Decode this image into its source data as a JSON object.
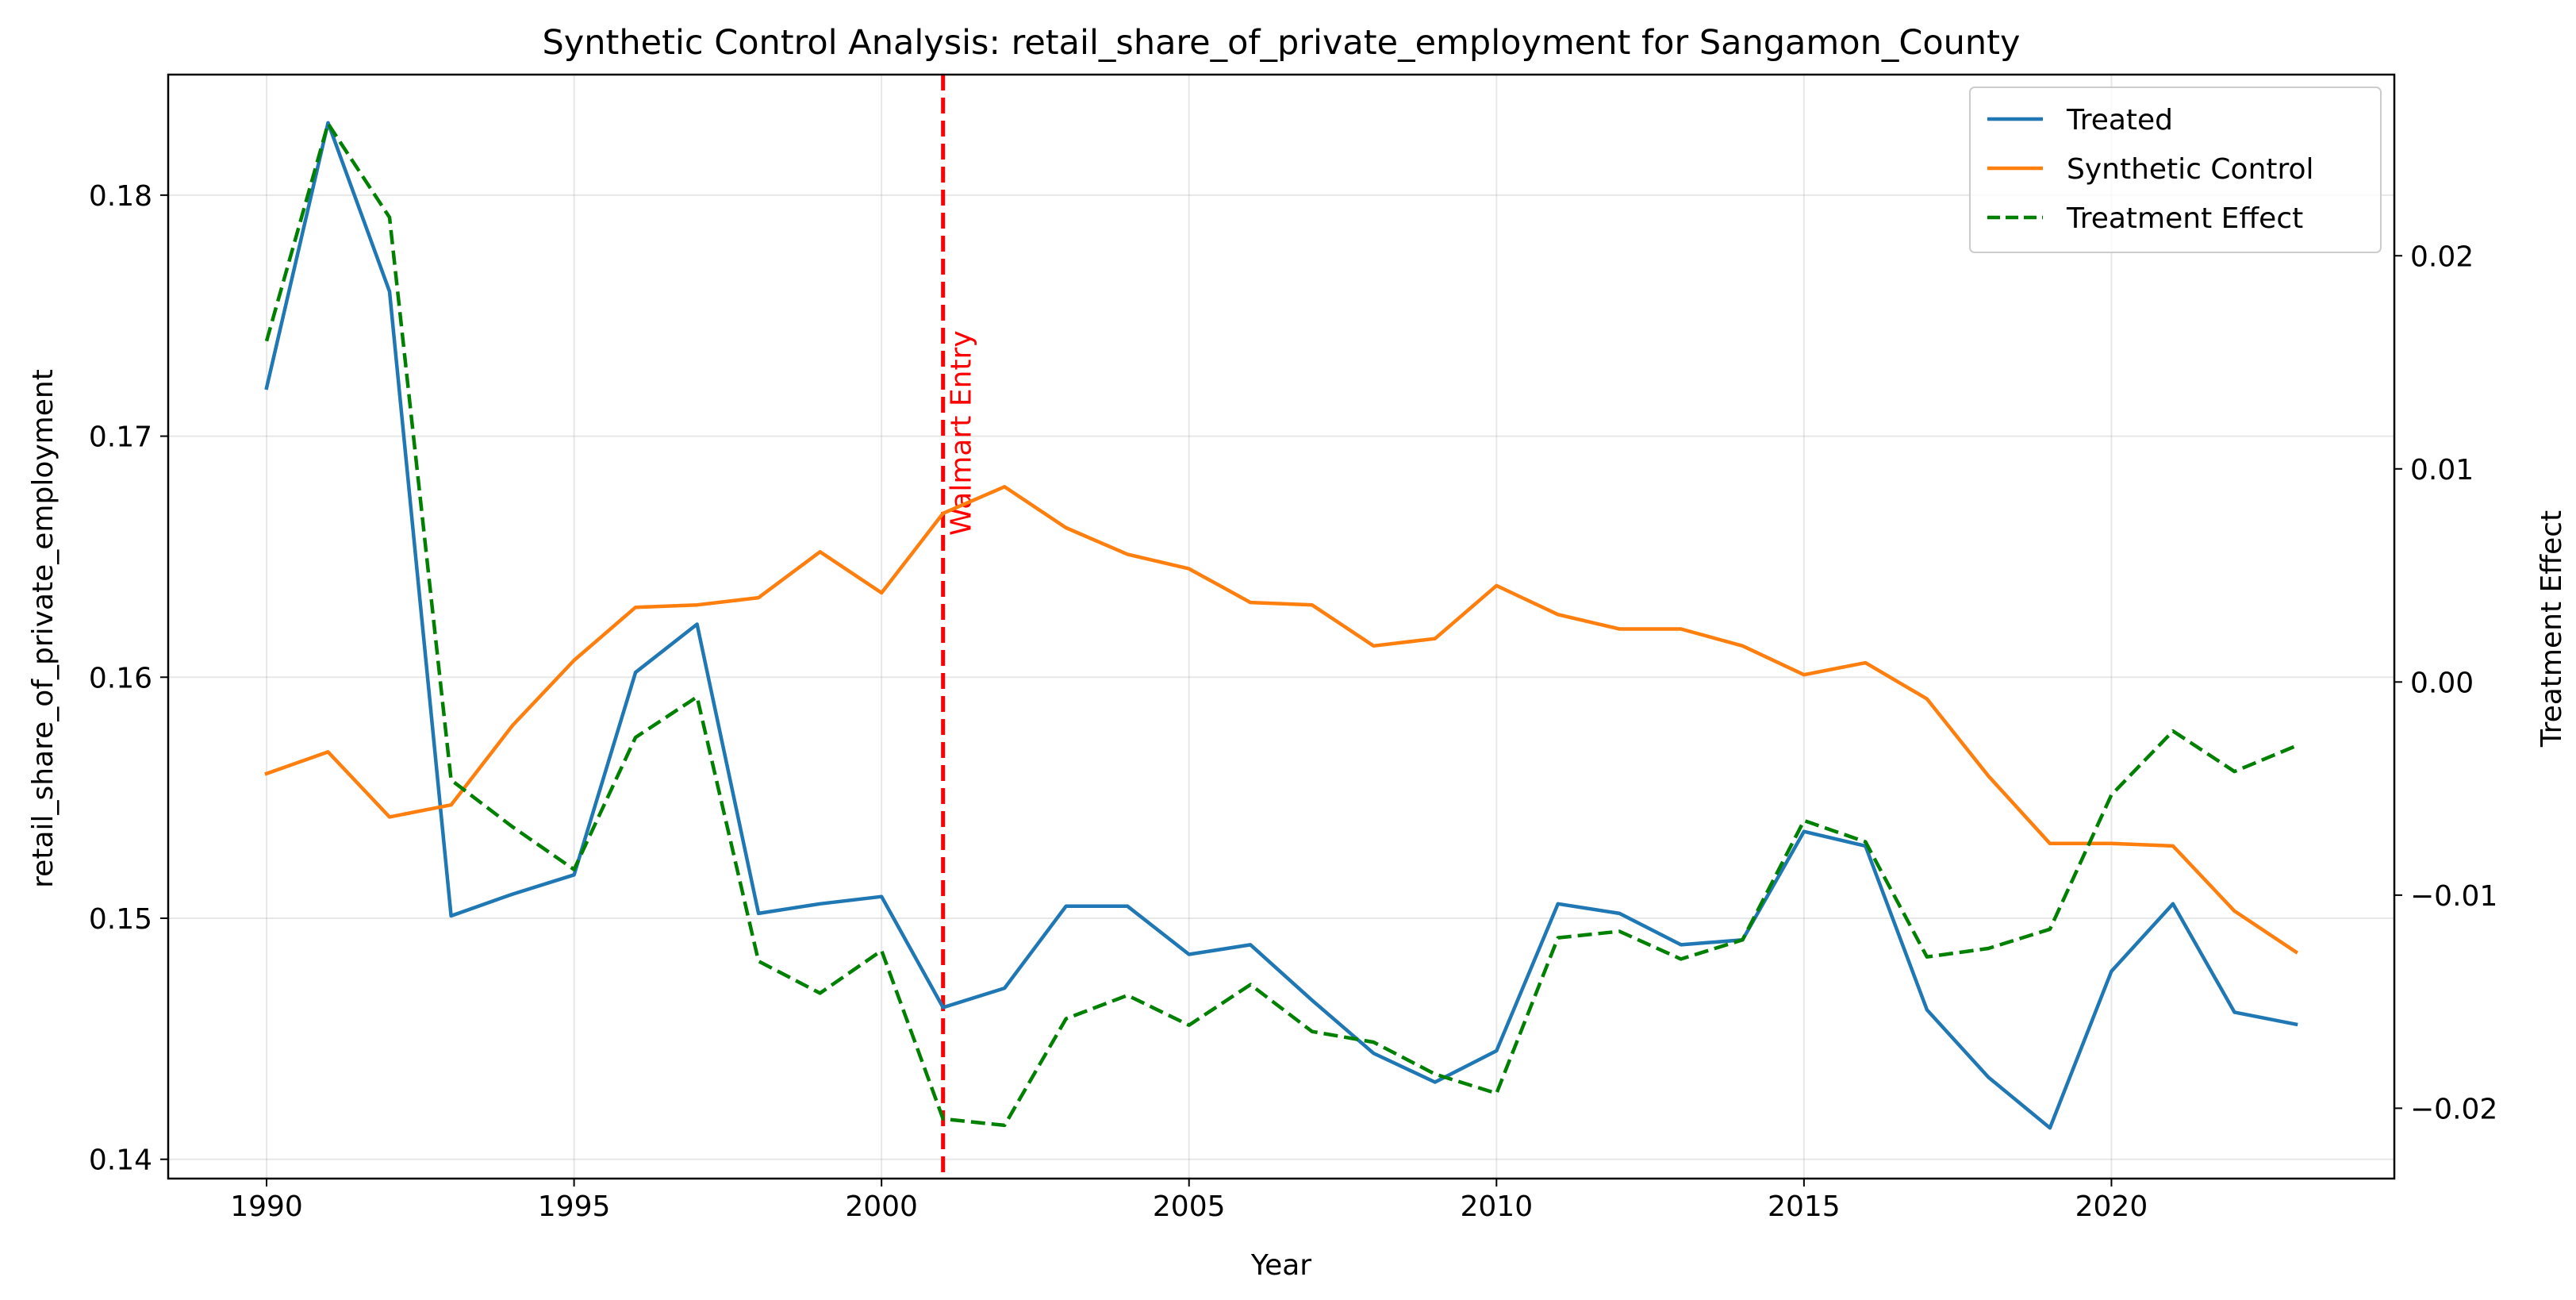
{
  "chart_data": {
    "type": "line",
    "title": "Synthetic Control Analysis: retail_share_of_private_employment for Sangamon_County",
    "xlabel": "Year",
    "ylabel": "retail_share_of_private_employment",
    "y2label": "Treatment Effect",
    "xlim": [
      1988.4,
      2024.6
    ],
    "ylim": [
      0.1392,
      0.185
    ],
    "y2lim": [
      -0.0233,
      0.0285
    ],
    "x_ticks": [
      "1990",
      "1995",
      "2000",
      "2005",
      "2010",
      "2015",
      "2020"
    ],
    "y_ticks": [
      "0.14",
      "0.15",
      "0.16",
      "0.17",
      "0.18"
    ],
    "y2_ticks": [
      "−0.02",
      "−0.01",
      "0.00",
      "0.01",
      "0.02"
    ],
    "grid": true,
    "legend_position": "top-right",
    "x": [
      1990,
      1991,
      1992,
      1993,
      1994,
      1995,
      1996,
      1997,
      1998,
      1999,
      2000,
      2001,
      2002,
      2003,
      2004,
      2005,
      2006,
      2007,
      2008,
      2009,
      2010,
      2011,
      2012,
      2013,
      2014,
      2015,
      2016,
      2017,
      2018,
      2019,
      2020,
      2021,
      2022,
      2023
    ],
    "series": [
      {
        "name": "Treated",
        "color": "#1f77b4",
        "style": "solid",
        "axis": "left",
        "values": [
          0.172,
          0.183,
          0.176,
          0.1501,
          0.151,
          0.1518,
          0.1602,
          0.1622,
          0.1502,
          0.1506,
          0.1509,
          0.1463,
          0.1471,
          0.1505,
          0.1505,
          0.1485,
          0.1489,
          0.1466,
          0.1444,
          0.1432,
          0.1445,
          0.1506,
          0.1502,
          0.1489,
          0.1491,
          0.1536,
          0.153,
          0.1462,
          0.1434,
          0.1413,
          0.1478,
          0.1506,
          0.1461,
          0.1456
        ]
      },
      {
        "name": "Synthetic Control",
        "color": "#ff7f0e",
        "style": "solid",
        "axis": "left",
        "values": [
          0.156,
          0.1569,
          0.1542,
          0.1547,
          0.158,
          0.1607,
          0.1629,
          0.163,
          0.1633,
          0.1652,
          0.1635,
          0.1668,
          0.1679,
          0.1662,
          0.1651,
          0.1645,
          0.1631,
          0.163,
          0.1613,
          0.1616,
          0.1638,
          0.1626,
          0.162,
          0.162,
          0.1613,
          0.1601,
          0.1606,
          0.1591,
          0.1559,
          0.1531,
          0.1531,
          0.153,
          0.1503,
          0.1486
        ]
      },
      {
        "name": "Treatment Effect",
        "color": "#008000",
        "style": "dashed",
        "axis": "right",
        "values": [
          0.016,
          0.0262,
          0.0218,
          -0.0046,
          -0.0068,
          -0.0088,
          -0.0026,
          -0.0007,
          -0.0131,
          -0.0146,
          -0.0126,
          -0.0205,
          -0.0208,
          -0.0158,
          -0.0147,
          -0.0161,
          -0.0142,
          -0.0164,
          -0.0169,
          -0.0184,
          -0.0193,
          -0.012,
          -0.0117,
          -0.013,
          -0.0121,
          -0.0065,
          -0.0075,
          -0.0129,
          -0.0125,
          -0.0116,
          -0.0053,
          -0.0023,
          -0.0042,
          -0.003
        ]
      }
    ],
    "annotations": [
      {
        "type": "vline",
        "x": 2001,
        "label": "Walmart Entry",
        "color": "#ff0000",
        "style": "dashed"
      }
    ]
  }
}
